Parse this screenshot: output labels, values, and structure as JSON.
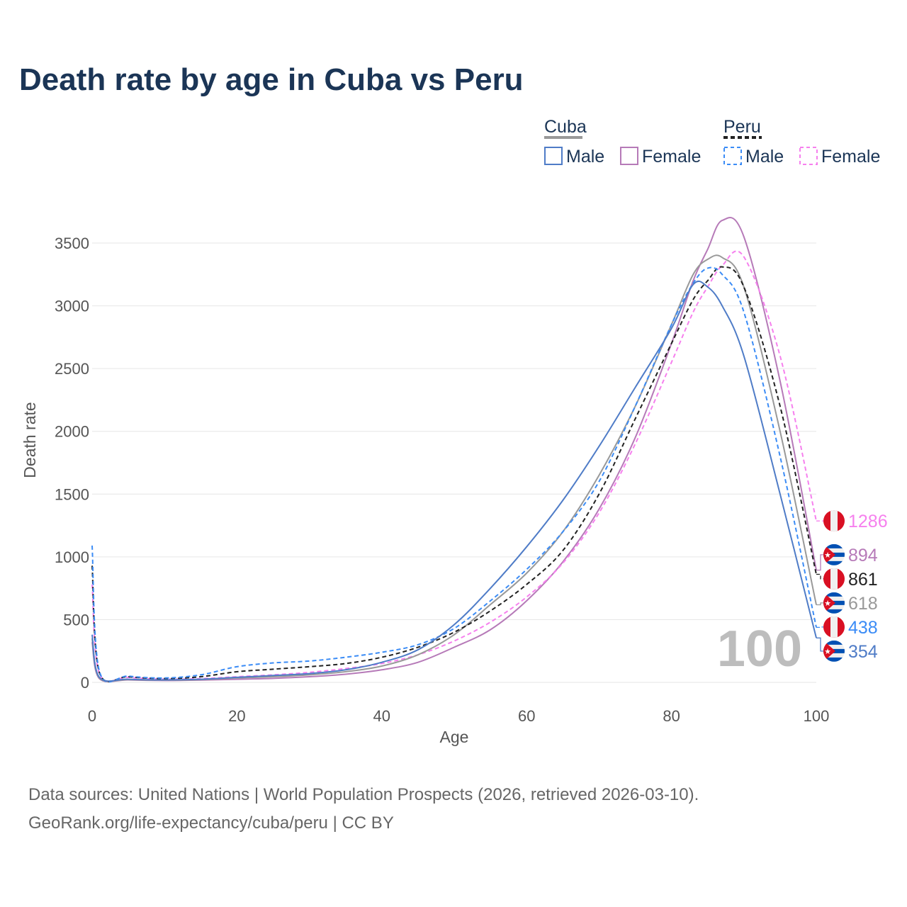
{
  "title": "Death rate by age in Cuba vs Peru",
  "legend": {
    "groups": [
      {
        "name": "Cuba",
        "color": "#999999",
        "dashed": false,
        "items": [
          {
            "label": "Male",
            "color": "#4f7cc7"
          },
          {
            "label": "Female",
            "color": "#b67ab8"
          }
        ]
      },
      {
        "name": "Peru",
        "color": "#222222",
        "dashed": true,
        "items": [
          {
            "label": "Male",
            "color": "#3b8cf6"
          },
          {
            "label": "Female",
            "color": "#f680ee"
          }
        ]
      }
    ]
  },
  "watermark": "100",
  "footer": {
    "line1": "Data sources: United Nations | World Population Prospects (2026, retrieved 2026-03-10).",
    "line2": "GeoRank.org/life-expectancy/cuba/peru | CC BY"
  },
  "chart_data": {
    "type": "line",
    "title": "Death rate by age in Cuba vs Peru",
    "xlabel": "Age",
    "ylabel": "Death rate",
    "xlim": [
      0,
      100
    ],
    "ylim": [
      0,
      3700
    ],
    "xticks": [
      0,
      20,
      40,
      60,
      80,
      100
    ],
    "yticks": [
      0,
      500,
      1000,
      1500,
      2000,
      2500,
      3000,
      3500
    ],
    "grid": true,
    "x": [
      0,
      1,
      5,
      10,
      15,
      20,
      25,
      30,
      35,
      40,
      45,
      50,
      55,
      60,
      65,
      70,
      75,
      80,
      83,
      85,
      87,
      90,
      95,
      100
    ],
    "series": [
      {
        "name": "Cuba Female",
        "country": "Cuba",
        "color": "#b67ab8",
        "dashed": false,
        "values": [
          320,
          30,
          20,
          15,
          18,
          25,
          32,
          45,
          65,
          100,
          160,
          280,
          420,
          650,
          960,
          1380,
          1950,
          2700,
          3200,
          3450,
          3680,
          3550,
          2400,
          894
        ]
      },
      {
        "name": "Peru Female",
        "country": "Peru",
        "color": "#f680ee",
        "dashed": true,
        "values": [
          780,
          70,
          40,
          25,
          30,
          45,
          60,
          80,
          110,
          150,
          220,
          330,
          480,
          680,
          950,
          1350,
          1900,
          2550,
          2950,
          3150,
          3320,
          3390,
          2600,
          1286
        ]
      },
      {
        "name": "Cuba Total",
        "country": "Cuba",
        "color": "#999999",
        "dashed": false,
        "values": [
          350,
          35,
          22,
          18,
          22,
          35,
          45,
          60,
          85,
          130,
          220,
          380,
          620,
          870,
          1200,
          1650,
          2200,
          2850,
          3250,
          3370,
          3385,
          3150,
          2000,
          618
        ]
      },
      {
        "name": "Peru Total",
        "country": "Peru",
        "color": "#222222",
        "dashed": true,
        "values": [
          930,
          80,
          45,
          30,
          45,
          85,
          105,
          125,
          150,
          200,
          280,
          400,
          570,
          780,
          1050,
          1500,
          2100,
          2700,
          3050,
          3200,
          3310,
          3150,
          2200,
          861
        ]
      },
      {
        "name": "Peru Male",
        "country": "Peru",
        "color": "#3b8cf6",
        "dashed": true,
        "values": [
          1090,
          90,
          50,
          35,
          60,
          125,
          155,
          170,
          200,
          240,
          300,
          430,
          650,
          900,
          1200,
          1600,
          2200,
          2850,
          3180,
          3300,
          3250,
          2950,
          1800,
          438
        ]
      },
      {
        "name": "Cuba Male",
        "country": "Cuba",
        "color": "#4f7cc7",
        "dashed": false,
        "values": [
          380,
          40,
          25,
          20,
          25,
          40,
          55,
          70,
          100,
          160,
          260,
          460,
          750,
          1080,
          1450,
          1880,
          2350,
          2820,
          3170,
          3150,
          3000,
          2600,
          1500,
          354
        ]
      }
    ],
    "end_labels": [
      "1286",
      "894",
      "861",
      "618",
      "438",
      "354"
    ]
  }
}
